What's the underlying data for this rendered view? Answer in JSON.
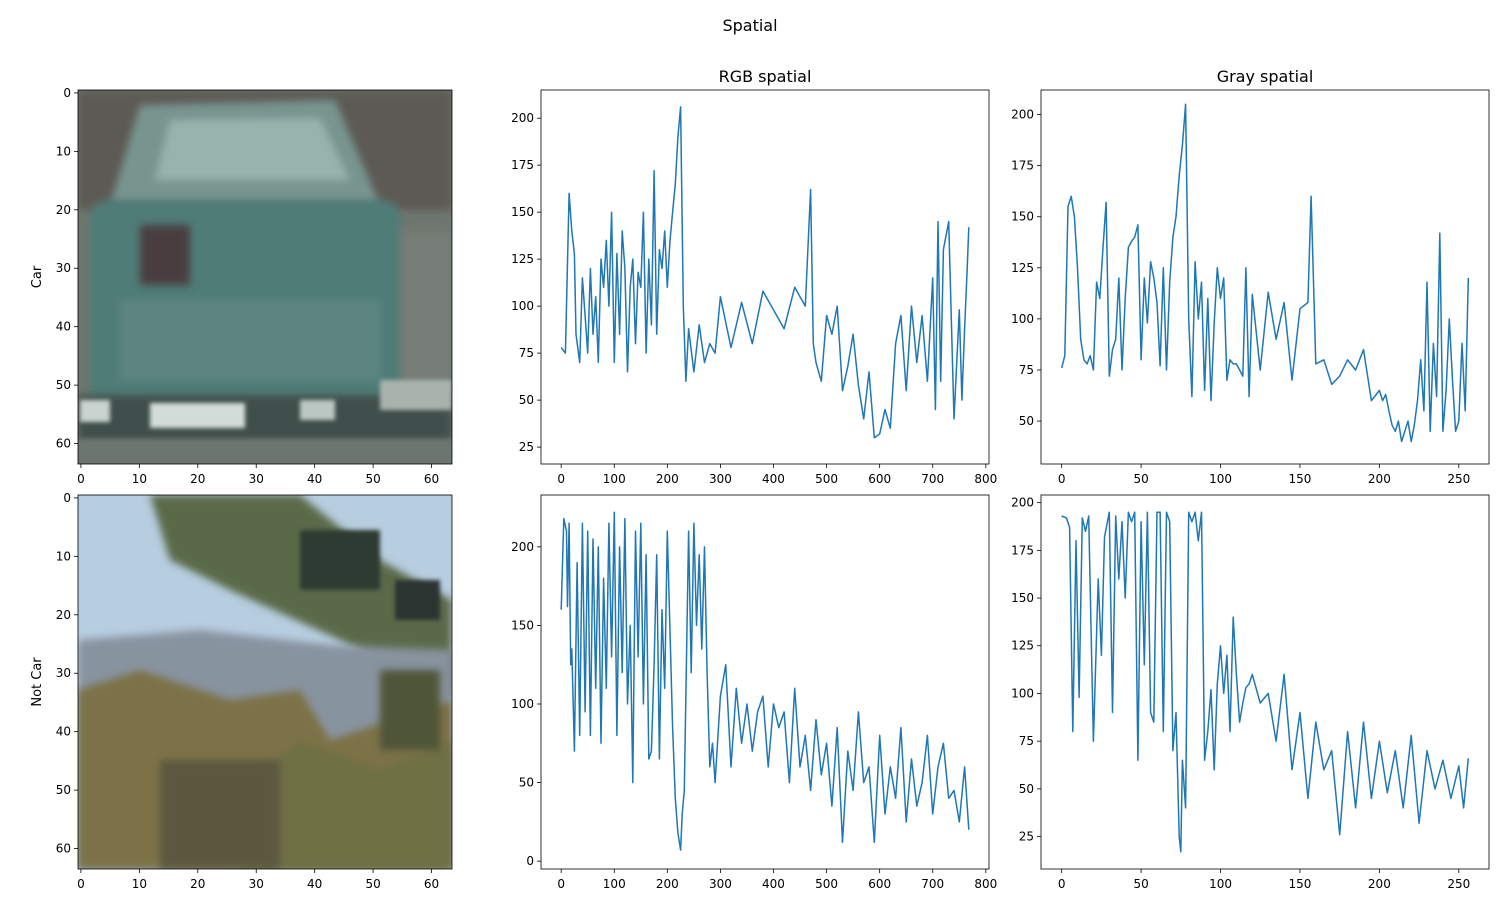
{
  "figure_title": "Spatial",
  "row_labels": [
    "Car",
    "Not Car"
  ],
  "column_titles": [
    "RGB spatial",
    "Gray spatial"
  ],
  "chart_data": [
    {
      "type": "image",
      "row_label": "Car",
      "x_ticks": [
        0,
        10,
        20,
        30,
        40,
        50,
        60
      ],
      "y_ticks": [
        0,
        10,
        20,
        30,
        40,
        50,
        60
      ],
      "xlim": [
        -0.5,
        63.5
      ],
      "ylim": [
        63.5,
        -0.5
      ],
      "colors": {
        "background": "#6e766f",
        "body": "#5e8a85",
        "window": "#8aa7a3",
        "shadow": "#3f4e4b",
        "light": "#c9d3cf"
      }
    },
    {
      "type": "line",
      "title": "RGB spatial",
      "x_ticks": [
        0,
        100,
        200,
        300,
        400,
        500,
        600,
        700,
        800
      ],
      "y_ticks": [
        25,
        50,
        75,
        100,
        125,
        150,
        175,
        200
      ],
      "xlim": [
        -38,
        806
      ],
      "ylim": [
        16,
        215
      ],
      "color": "#1f77b4",
      "series": [
        {
          "x": [
            0,
            8,
            15,
            20,
            25,
            28,
            35,
            40,
            45,
            50,
            55,
            60,
            65,
            70,
            75,
            80,
            85,
            90,
            95,
            100,
            105,
            110,
            115,
            120,
            125,
            130,
            135,
            140,
            145,
            150,
            155,
            160,
            165,
            170,
            175,
            180,
            185,
            190,
            195,
            200,
            205,
            210,
            215,
            220,
            225,
            230,
            235,
            240,
            250,
            260,
            270,
            280,
            290,
            300,
            320,
            340,
            360,
            380,
            400,
            420,
            440,
            460,
            470,
            475,
            480,
            490,
            500,
            510,
            520,
            530,
            540,
            550,
            560,
            570,
            580,
            590,
            600,
            610,
            620,
            630,
            640,
            650,
            660,
            670,
            680,
            690,
            700,
            705,
            710,
            715,
            720,
            730,
            740,
            750,
            755,
            760,
            765,
            768
          ],
          "y": [
            78,
            75,
            160,
            140,
            128,
            85,
            70,
            115,
            95,
            75,
            120,
            85,
            105,
            70,
            125,
            110,
            135,
            100,
            150,
            70,
            128,
            85,
            140,
            120,
            65,
            110,
            125,
            80,
            118,
            110,
            150,
            75,
            125,
            90,
            172,
            85,
            130,
            120,
            140,
            110,
            135,
            150,
            165,
            190,
            206,
            100,
            60,
            88,
            65,
            90,
            70,
            80,
            75,
            105,
            78,
            102,
            80,
            108,
            98,
            88,
            110,
            100,
            162,
            80,
            70,
            60,
            95,
            85,
            100,
            55,
            68,
            85,
            58,
            40,
            65,
            30,
            32,
            45,
            35,
            80,
            95,
            55,
            100,
            70,
            95,
            60,
            115,
            45,
            145,
            60,
            130,
            145,
            40,
            98,
            50,
            88,
            120,
            142
          ]
        }
      ]
    },
    {
      "type": "line",
      "title": "Gray spatial",
      "x_ticks": [
        0,
        50,
        100,
        150,
        200,
        250
      ],
      "y_ticks": [
        50,
        75,
        100,
        125,
        150,
        175,
        200
      ],
      "xlim": [
        -13,
        269
      ],
      "ylim": [
        29,
        212
      ],
      "color": "#1f77b4",
      "series": [
        {
          "x": [
            0,
            2,
            4,
            6,
            8,
            10,
            12,
            14,
            16,
            18,
            20,
            22,
            24,
            26,
            28,
            30,
            32,
            34,
            36,
            38,
            40,
            42,
            44,
            46,
            48,
            50,
            52,
            54,
            56,
            58,
            60,
            62,
            64,
            66,
            68,
            70,
            72,
            74,
            76,
            78,
            80,
            82,
            84,
            86,
            88,
            90,
            92,
            94,
            96,
            98,
            100,
            102,
            104,
            106,
            108,
            110,
            112,
            114,
            116,
            118,
            120,
            125,
            130,
            135,
            140,
            145,
            150,
            155,
            157,
            160,
            165,
            170,
            175,
            180,
            185,
            190,
            195,
            200,
            202,
            204,
            206,
            208,
            210,
            212,
            214,
            216,
            218,
            220,
            222,
            224,
            226,
            228,
            230,
            232,
            234,
            236,
            238,
            240,
            242,
            244,
            246,
            248,
            250,
            252,
            254,
            256
          ],
          "y": [
            76,
            82,
            155,
            160,
            150,
            125,
            90,
            80,
            78,
            82,
            75,
            118,
            110,
            135,
            157,
            72,
            85,
            90,
            120,
            75,
            110,
            135,
            138,
            140,
            146,
            80,
            120,
            98,
            128,
            120,
            108,
            77,
            125,
            75,
            118,
            140,
            150,
            170,
            185,
            205,
            100,
            62,
            128,
            100,
            118,
            65,
            110,
            60,
            98,
            125,
            110,
            120,
            70,
            80,
            78,
            78,
            75,
            72,
            125,
            62,
            112,
            75,
            113,
            90,
            108,
            70,
            105,
            108,
            160,
            78,
            80,
            68,
            72,
            80,
            75,
            85,
            60,
            65,
            60,
            63,
            55,
            48,
            45,
            50,
            40,
            45,
            50,
            40,
            48,
            60,
            80,
            55,
            118,
            45,
            88,
            62,
            142,
            45,
            65,
            100,
            70,
            45,
            50,
            88,
            55,
            120
          ]
        }
      ]
    },
    {
      "type": "image",
      "row_label": "Not Car",
      "x_ticks": [
        0,
        10,
        20,
        30,
        40,
        50,
        60
      ],
      "y_ticks": [
        0,
        10,
        20,
        30,
        40,
        50,
        60
      ],
      "xlim": [
        -0.5,
        63.5
      ],
      "ylim": [
        63.5,
        -0.5
      ],
      "colors": {
        "sky": "#b6cde0",
        "tree": "#56643f",
        "dark": "#2f3a2c",
        "hill": "#8793a0",
        "shrub": "#7a6f45"
      }
    },
    {
      "type": "line",
      "x_ticks": [
        0,
        100,
        200,
        300,
        400,
        500,
        600,
        700,
        800
      ],
      "y_ticks": [
        0,
        50,
        100,
        150,
        200
      ],
      "xlim": [
        -38,
        806
      ],
      "ylim": [
        -5,
        233
      ],
      "color": "#1f77b4",
      "series": [
        {
          "x": [
            0,
            5,
            10,
            12,
            15,
            18,
            20,
            25,
            30,
            35,
            40,
            45,
            50,
            55,
            60,
            65,
            70,
            75,
            80,
            85,
            90,
            95,
            100,
            105,
            110,
            115,
            120,
            125,
            130,
            135,
            140,
            145,
            150,
            155,
            160,
            165,
            170,
            175,
            180,
            185,
            190,
            195,
            200,
            210,
            215,
            220,
            225,
            228,
            232,
            240,
            245,
            250,
            255,
            260,
            265,
            270,
            275,
            280,
            285,
            290,
            300,
            310,
            320,
            330,
            340,
            350,
            360,
            370,
            380,
            390,
            400,
            410,
            420,
            430,
            440,
            450,
            460,
            470,
            480,
            490,
            500,
            510,
            520,
            530,
            540,
            550,
            560,
            570,
            580,
            590,
            600,
            610,
            620,
            630,
            640,
            650,
            660,
            670,
            680,
            690,
            700,
            710,
            720,
            730,
            740,
            750,
            760,
            768
          ],
          "y": [
            160,
            218,
            210,
            162,
            215,
            125,
            135,
            70,
            190,
            80,
            215,
            95,
            210,
            80,
            205,
            110,
            200,
            75,
            180,
            110,
            215,
            130,
            222,
            80,
            200,
            120,
            218,
            100,
            150,
            50,
            210,
            130,
            215,
            100,
            195,
            65,
            70,
            125,
            195,
            65,
            160,
            110,
            210,
            85,
            40,
            18,
            7,
            30,
            45,
            210,
            120,
            215,
            150,
            195,
            135,
            200,
            120,
            60,
            75,
            50,
            105,
            125,
            60,
            110,
            75,
            100,
            70,
            95,
            105,
            60,
            100,
            85,
            95,
            50,
            110,
            60,
            80,
            45,
            90,
            55,
            75,
            35,
            85,
            12,
            70,
            45,
            95,
            50,
            60,
            12,
            80,
            30,
            60,
            40,
            85,
            25,
            65,
            35,
            50,
            80,
            30,
            60,
            75,
            40,
            45,
            25,
            60,
            20
          ]
        }
      ]
    },
    {
      "type": "line",
      "x_ticks": [
        0,
        50,
        100,
        150,
        200,
        250
      ],
      "y_ticks": [
        25,
        50,
        75,
        100,
        125,
        150,
        175,
        200
      ],
      "xlim": [
        -13,
        269
      ],
      "ylim": [
        8,
        204
      ],
      "color": "#1f77b4",
      "series": [
        {
          "x": [
            0,
            3,
            5,
            7,
            9,
            11,
            13,
            15,
            17,
            20,
            23,
            25,
            27,
            30,
            32,
            34,
            36,
            38,
            40,
            42,
            44,
            46,
            48,
            50,
            52,
            54,
            56,
            58,
            60,
            62,
            64,
            66,
            68,
            70,
            72,
            74,
            75,
            76,
            78,
            80,
            82,
            84,
            86,
            88,
            90,
            92,
            94,
            96,
            98,
            100,
            102,
            104,
            106,
            108,
            110,
            112,
            114,
            116,
            118,
            120,
            125,
            130,
            135,
            140,
            145,
            150,
            155,
            160,
            165,
            170,
            175,
            180,
            185,
            190,
            195,
            200,
            205,
            210,
            215,
            220,
            225,
            230,
            235,
            240,
            245,
            250,
            253,
            256
          ],
          "y": [
            193,
            192,
            187,
            80,
            180,
            98,
            192,
            185,
            193,
            75,
            160,
            120,
            182,
            195,
            90,
            193,
            160,
            190,
            150,
            195,
            190,
            195,
            65,
            190,
            115,
            195,
            90,
            85,
            195,
            195,
            80,
            195,
            190,
            70,
            90,
            25,
            17,
            65,
            40,
            195,
            190,
            195,
            180,
            195,
            65,
            80,
            102,
            60,
            105,
            125,
            100,
            120,
            80,
            140,
            110,
            85,
            95,
            103,
            105,
            110,
            95,
            100,
            75,
            110,
            60,
            90,
            45,
            85,
            60,
            70,
            26,
            80,
            40,
            85,
            45,
            75,
            48,
            70,
            40,
            78,
            32,
            70,
            50,
            65,
            45,
            62,
            40,
            66
          ]
        }
      ]
    }
  ]
}
